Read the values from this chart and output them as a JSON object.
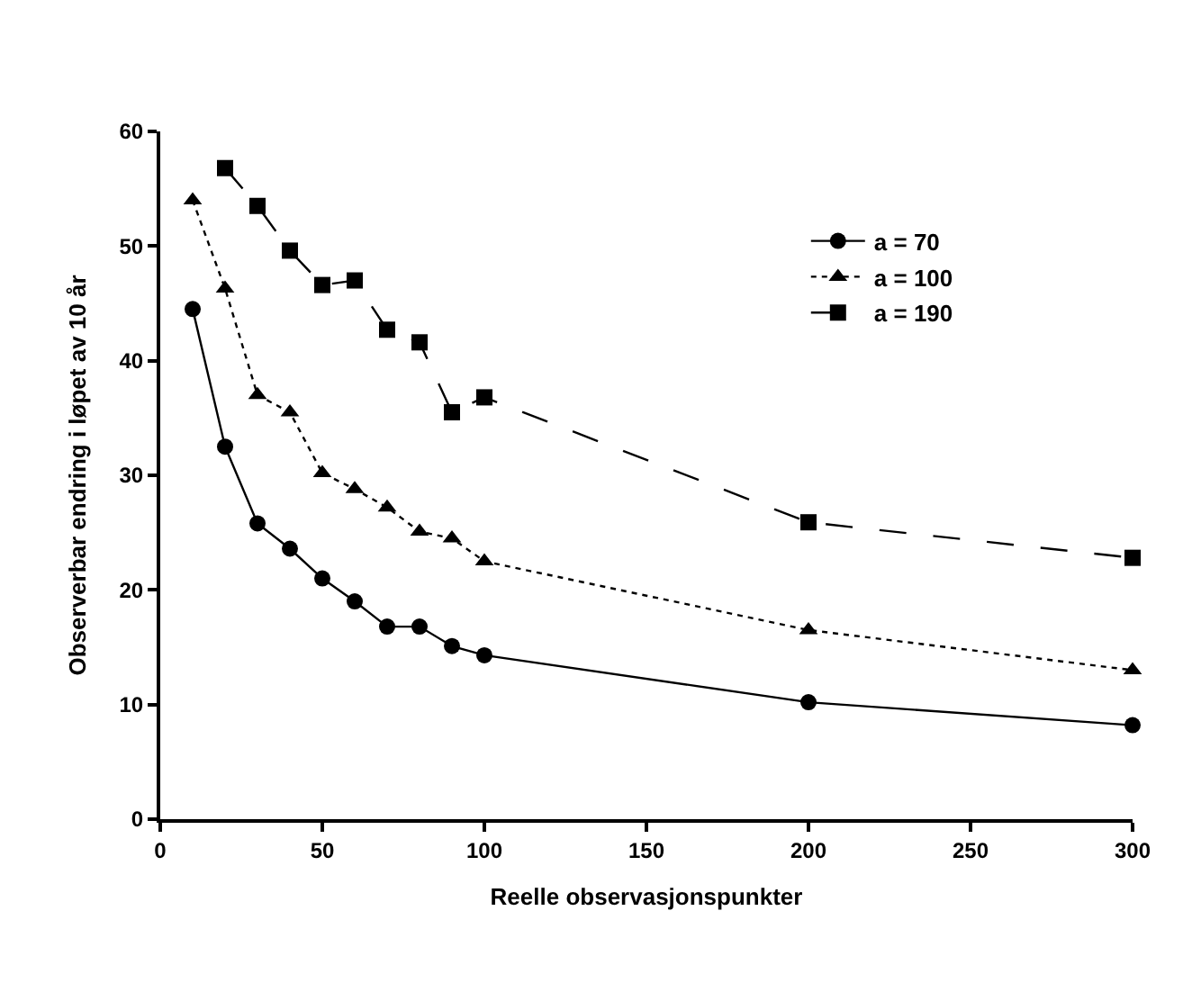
{
  "chart_data": {
    "type": "line",
    "xlabel": "Reelle observasjonspunkter",
    "ylabel": "Observerbar endring i løpet av 10 år",
    "x": [
      10,
      20,
      30,
      40,
      50,
      60,
      70,
      80,
      90,
      100,
      200,
      300
    ],
    "series": [
      {
        "name": "a = 70",
        "color": "#000000",
        "marker": "circle",
        "line_style": "solid",
        "values": [
          44.5,
          32.5,
          25.8,
          23.6,
          21.0,
          19.0,
          16.8,
          16.8,
          15.1,
          14.3,
          10.2,
          8.2
        ]
      },
      {
        "name": "a = 100",
        "color": "#000000",
        "marker": "triangle",
        "line_style": "dotted",
        "values": [
          54.0,
          46.3,
          37.0,
          35.5,
          30.2,
          28.8,
          27.2,
          25.1,
          24.5,
          22.5,
          16.5,
          13.0
        ]
      },
      {
        "name": "a = 190",
        "color": "#000000",
        "marker": "square",
        "line_style": "dashed",
        "values": [
          null,
          56.8,
          53.5,
          49.6,
          46.6,
          47.0,
          42.7,
          41.6,
          35.5,
          36.8,
          25.9,
          22.8
        ]
      }
    ],
    "xlim": [
      0,
      300
    ],
    "xticks": [
      0,
      50,
      100,
      150,
      200,
      250,
      300
    ],
    "ylim": [
      0,
      60
    ],
    "yticks": [
      0,
      10,
      20,
      30,
      40,
      50,
      60
    ],
    "legend": "top right"
  }
}
